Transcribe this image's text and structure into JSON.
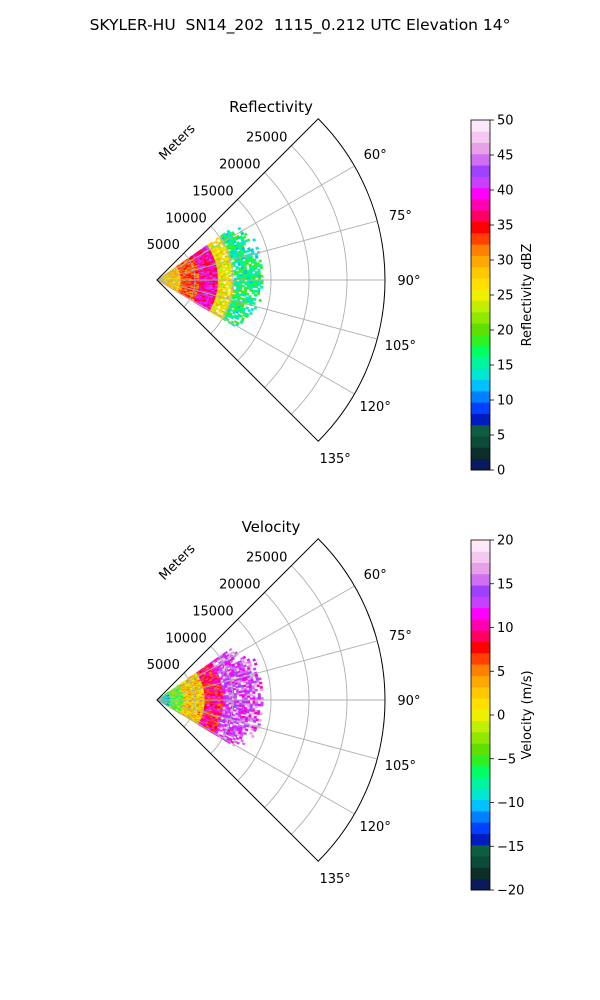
{
  "title": "SKYLER-HU  SN14_202  1115_0.212 UTC Elevation 14°",
  "chart_data": [
    {
      "type": "heatmap",
      "subtype": "polar-sector-ppi",
      "title": "Reflectivity",
      "range_label": "Meters",
      "range_ticks": [
        5000,
        10000,
        15000,
        20000,
        25000
      ],
      "range_tick_labels": [
        "5000",
        "10000",
        "15000",
        "20000",
        "25000"
      ],
      "rmax": 30000,
      "azimuth_range": [
        45,
        135
      ],
      "azimuth_ticks": [
        60,
        75,
        90,
        105,
        120,
        135
      ],
      "azimuth_tick_labels": [
        "60°",
        "75°",
        "90°",
        "105°",
        "120°",
        "135°"
      ],
      "grid": true,
      "colorbar": {
        "label": "Reflectivity dBZ",
        "vmin": 0,
        "vmax": 50,
        "ticks": [
          0,
          5,
          10,
          15,
          20,
          25,
          30,
          35,
          40,
          45,
          50
        ],
        "tick_labels": [
          "0",
          "5",
          "10",
          "15",
          "20",
          "25",
          "30",
          "35",
          "40",
          "45",
          "50"
        ],
        "colors": [
          "#0a1a5c",
          "#0d2f2a",
          "#0c4a3a",
          "#0d5d40",
          "#001cc0",
          "#0040ff",
          "#0080ff",
          "#00c0ff",
          "#00e6d0",
          "#00f5a0",
          "#00ff60",
          "#30f020",
          "#60e000",
          "#90e800",
          "#c0f000",
          "#eef000",
          "#ffe000",
          "#ffc800",
          "#ffa800",
          "#ff8000",
          "#ff4000",
          "#ff0000",
          "#ff0060",
          "#ff00b0",
          "#ff00ff",
          "#c840ff",
          "#a040ff",
          "#d070f0",
          "#e8a0e8",
          "#f4c8f0",
          "#fce8f8"
        ]
      },
      "data_extent": {
        "range_max_m": 14000,
        "azimuth": [
          55,
          120
        ]
      },
      "field": [
        {
          "range_m": [
            0,
            3000
          ],
          "value": 28
        },
        {
          "range_m": [
            3000,
            5500
          ],
          "value": 33
        },
        {
          "range_m": [
            5500,
            8000
          ],
          "value": 38
        },
        {
          "range_m": [
            8000,
            10000
          ],
          "value": 26
        },
        {
          "range_m": [
            10000,
            14000
          ],
          "value": 16
        }
      ]
    },
    {
      "type": "heatmap",
      "subtype": "polar-sector-ppi",
      "title": "Velocity",
      "range_label": "Meters",
      "range_ticks": [
        5000,
        10000,
        15000,
        20000,
        25000
      ],
      "range_tick_labels": [
        "5000",
        "10000",
        "15000",
        "20000",
        "25000"
      ],
      "rmax": 30000,
      "azimuth_range": [
        45,
        135
      ],
      "azimuth_ticks": [
        60,
        75,
        90,
        105,
        120,
        135
      ],
      "azimuth_tick_labels": [
        "60°",
        "75°",
        "90°",
        "105°",
        "120°",
        "135°"
      ],
      "grid": true,
      "colorbar": {
        "label": "Velocity (m/s)",
        "vmin": -20,
        "vmax": 20,
        "ticks": [
          -20,
          -15,
          -10,
          -5,
          0,
          5,
          10,
          15,
          20
        ],
        "tick_labels": [
          "−20",
          "−15",
          "−10",
          "−5",
          "0",
          "5",
          "10",
          "15",
          "20"
        ],
        "colors": [
          "#0a1a5c",
          "#0d2f2a",
          "#0c4a3a",
          "#0d5d40",
          "#001cc0",
          "#0040ff",
          "#0080ff",
          "#00c0ff",
          "#00e6d0",
          "#00f5a0",
          "#00ff60",
          "#30f020",
          "#60e000",
          "#90e800",
          "#c0f000",
          "#eef000",
          "#ffe000",
          "#ffc800",
          "#ffa800",
          "#ff8000",
          "#ff4000",
          "#ff0000",
          "#ff0060",
          "#ff00b0",
          "#ff00ff",
          "#c840ff",
          "#a040ff",
          "#d070f0",
          "#e8a0e8",
          "#f4c8f0",
          "#fce8f8"
        ]
      },
      "data_extent": {
        "range_max_m": 14000,
        "azimuth": [
          55,
          120
        ]
      },
      "field": [
        {
          "range_m": [
            0,
            1500
          ],
          "value": -9
        },
        {
          "range_m": [
            1500,
            3500
          ],
          "value": -4
        },
        {
          "range_m": [
            3500,
            6000
          ],
          "value": 2
        },
        {
          "range_m": [
            6000,
            8500
          ],
          "value": 9
        },
        {
          "range_m": [
            8500,
            14000
          ],
          "value": 14
        }
      ]
    }
  ]
}
